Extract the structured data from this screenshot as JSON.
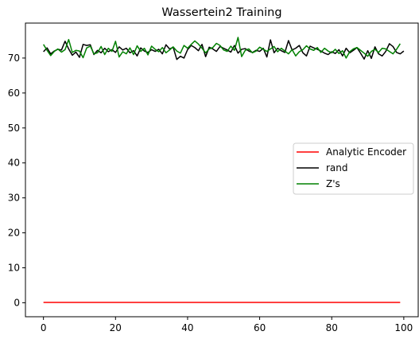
{
  "chart_data": {
    "type": "line",
    "title": "Wassertein2 Training",
    "xlabel": "",
    "ylabel": "",
    "xlim": [
      -5,
      104
    ],
    "ylim": [
      -4,
      80
    ],
    "xticks": [
      0,
      20,
      40,
      60,
      80,
      100
    ],
    "yticks": [
      0,
      10,
      20,
      30,
      40,
      50,
      60,
      70
    ],
    "grid": false,
    "legend_position": "center-right",
    "series": [
      {
        "name": "Analytic Encoder",
        "color": "#ff0000",
        "x_start": 0,
        "x_step": 1,
        "values": [
          0.1,
          0.1,
          0.1,
          0.1,
          0.1,
          0.1,
          0.1,
          0.1,
          0.1,
          0.1,
          0.1,
          0.1,
          0.1,
          0.1,
          0.1,
          0.1,
          0.1,
          0.1,
          0.1,
          0.1,
          0.1,
          0.1,
          0.1,
          0.1,
          0.1,
          0.1,
          0.1,
          0.1,
          0.1,
          0.1,
          0.1,
          0.1,
          0.1,
          0.1,
          0.1,
          0.1,
          0.1,
          0.1,
          0.1,
          0.1,
          0.1,
          0.1,
          0.1,
          0.1,
          0.1,
          0.1,
          0.1,
          0.1,
          0.1,
          0.1,
          0.1,
          0.1,
          0.1,
          0.1,
          0.1,
          0.1,
          0.1,
          0.1,
          0.1,
          0.1,
          0.1,
          0.1,
          0.1,
          0.1,
          0.1,
          0.1,
          0.1,
          0.1,
          0.1,
          0.1,
          0.1,
          0.1,
          0.1,
          0.1,
          0.1,
          0.1,
          0.1,
          0.1,
          0.1,
          0.1,
          0.1,
          0.1,
          0.1,
          0.1,
          0.1,
          0.1,
          0.1,
          0.1,
          0.1,
          0.1,
          0.1,
          0.1,
          0.1,
          0.1,
          0.1,
          0.1,
          0.1,
          0.1,
          0.1,
          0.1
        ]
      },
      {
        "name": "rand",
        "color": "#000000",
        "x_start": 0,
        "x_step": 1,
        "values": [
          71.8,
          72.9,
          71.2,
          72.0,
          72.5,
          72.3,
          74.8,
          72.6,
          70.8,
          71.7,
          70.2,
          73.9,
          73.6,
          73.8,
          71.0,
          72.2,
          71.5,
          72.8,
          71.8,
          72.4,
          71.6,
          73.2,
          72.3,
          72.8,
          71.5,
          72.1,
          70.6,
          72.9,
          72.0,
          71.6,
          72.4,
          71.9,
          72.5,
          71.2,
          73.8,
          72.6,
          73.1,
          69.6,
          70.5,
          70.0,
          72.4,
          73.6,
          73.0,
          72.1,
          73.9,
          70.4,
          73.1,
          72.6,
          71.9,
          73.3,
          72.8,
          72.3,
          71.7,
          73.6,
          71.4,
          72.5,
          72.7,
          72.0,
          71.6,
          72.2,
          71.9,
          72.8,
          70.3,
          75.2,
          71.5,
          72.8,
          72.1,
          71.6,
          75.0,
          72.3,
          72.8,
          73.6,
          71.5,
          70.6,
          73.4,
          72.9,
          72.5,
          72.0,
          71.4,
          71.0,
          71.8,
          71.3,
          72.4,
          70.6,
          72.8,
          71.5,
          72.2,
          73.0,
          71.4,
          69.7,
          72.1,
          69.9,
          73.2,
          71.2,
          70.6,
          71.9,
          74.1,
          73.3,
          71.6,
          71.2,
          72.0
        ]
      },
      {
        "name": "Z's",
        "color": "#008000",
        "x_start": 0,
        "x_step": 1,
        "values": [
          73.9,
          72.2,
          70.7,
          71.9,
          72.6,
          71.7,
          72.4,
          75.3,
          71.6,
          72.2,
          72.0,
          70.1,
          72.9,
          73.4,
          71.2,
          71.5,
          73.3,
          71.0,
          72.8,
          71.9,
          74.8,
          70.3,
          71.8,
          71.2,
          72.9,
          71.0,
          73.5,
          71.9,
          72.8,
          70.9,
          73.4,
          72.5,
          71.8,
          73.0,
          71.5,
          72.3,
          73.2,
          72.0,
          71.4,
          73.6,
          72.8,
          73.9,
          74.9,
          74.0,
          72.8,
          71.5,
          72.6,
          73.0,
          74.2,
          73.6,
          72.3,
          71.9,
          73.4,
          72.2,
          75.9,
          70.4,
          72.2,
          72.6,
          71.5,
          72.0,
          73.1,
          72.5,
          71.9,
          72.6,
          73.3,
          71.8,
          72.8,
          72.0,
          71.2,
          72.4,
          70.6,
          71.8,
          72.4,
          73.5,
          72.6,
          72.2,
          73.0,
          71.6,
          72.8,
          72.0,
          71.5,
          72.5,
          71.3,
          72.1,
          70.0,
          71.8,
          72.6,
          73.0,
          72.2,
          71.4,
          70.5,
          71.9,
          72.5,
          71.6,
          72.8,
          72.6,
          71.9,
          71.2,
          72.5,
          74.1
        ]
      }
    ]
  }
}
